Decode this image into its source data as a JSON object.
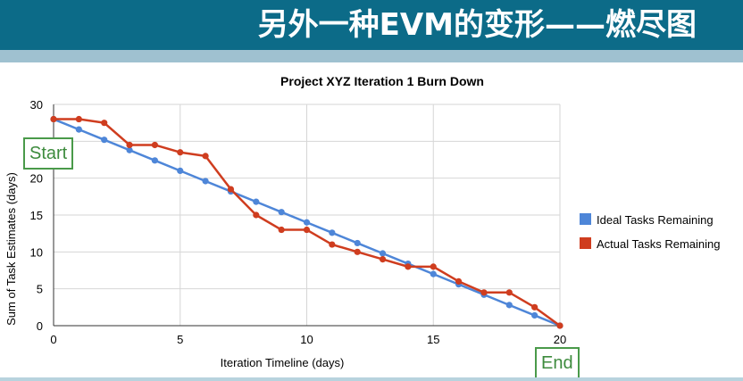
{
  "slide": {
    "title": "另外一种EVM的变形——燃尽图"
  },
  "callouts": {
    "start": "Start",
    "end": "End"
  },
  "colors": {
    "header_bg": "#0c6b88",
    "subbar": "#9fc1d0",
    "ideal": "#4e86d8",
    "actual": "#cf3d1f",
    "callout": "#4a9a4a"
  },
  "chart_data": {
    "type": "line",
    "title": "Project XYZ Iteration 1 Burn Down",
    "xlabel": "Iteration Timeline (days)",
    "ylabel": "Sum of Task Estimates (days)",
    "xlim": [
      0,
      20
    ],
    "ylim": [
      0,
      30
    ],
    "xticks": [
      0,
      5,
      10,
      15,
      20
    ],
    "yticks": [
      0,
      5,
      10,
      15,
      20,
      25,
      30
    ],
    "grid": true,
    "legend_position": "right",
    "x": [
      0,
      1,
      2,
      3,
      4,
      5,
      6,
      7,
      8,
      9,
      10,
      11,
      12,
      13,
      14,
      15,
      16,
      17,
      18,
      19,
      20
    ],
    "series": [
      {
        "name": "Ideal Tasks Remaining",
        "color": "#4e86d8",
        "values": [
          28,
          26.6,
          25.2,
          23.8,
          22.4,
          21,
          19.6,
          18.2,
          16.8,
          15.4,
          14,
          12.6,
          11.2,
          9.8,
          8.4,
          7,
          5.6,
          4.2,
          2.8,
          1.4,
          0
        ]
      },
      {
        "name": "Actual Tasks Remaining",
        "color": "#cf3d1f",
        "values": [
          28,
          28,
          27.5,
          24.5,
          24.5,
          23.5,
          23,
          18.5,
          15,
          13,
          13,
          11,
          10,
          9,
          8,
          8,
          6,
          4.5,
          4.5,
          2.5,
          0
        ]
      }
    ]
  }
}
